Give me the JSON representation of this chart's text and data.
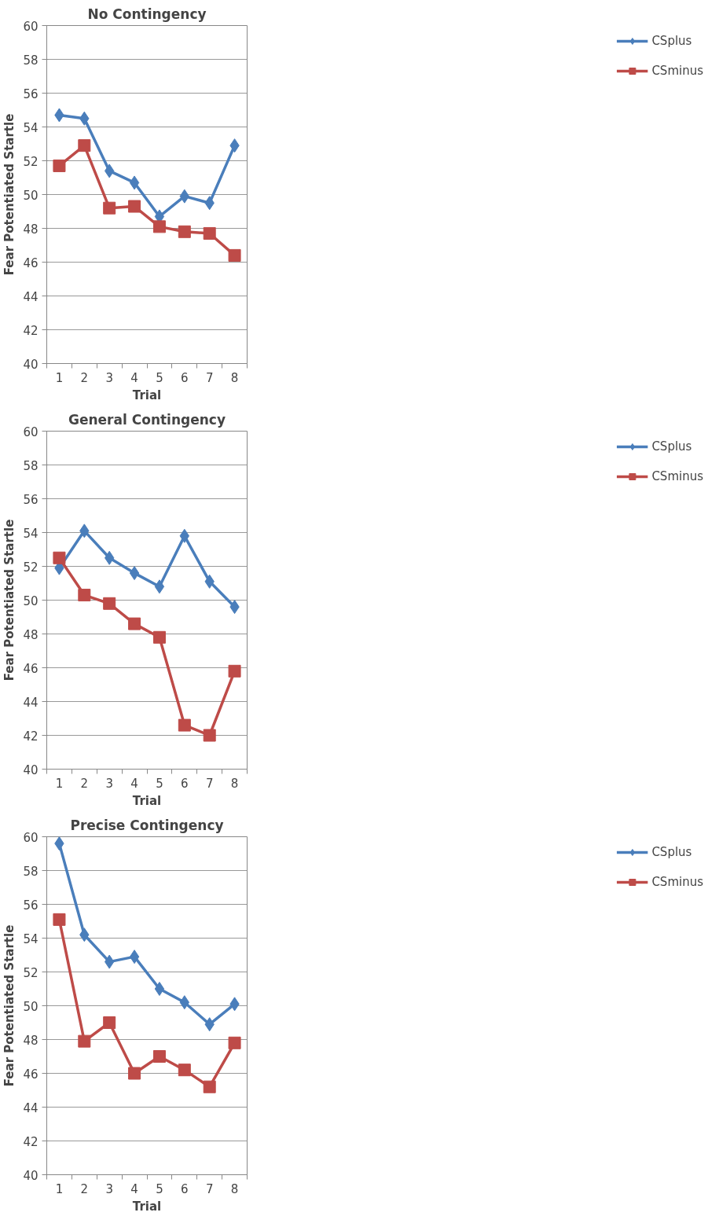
{
  "chart_data": [
    {
      "type": "line",
      "title": "No Contingency",
      "xlabel": "Trial",
      "ylabel": "Fear Potentiated Startle",
      "categories": [
        "1",
        "2",
        "3",
        "4",
        "5",
        "6",
        "7",
        "8"
      ],
      "ylim": [
        40,
        60
      ],
      "yticks": [
        40,
        42,
        44,
        46,
        48,
        50,
        52,
        54,
        56,
        58,
        60
      ],
      "grid": "y",
      "legend": "right",
      "series": [
        {
          "name": "CSplus",
          "color": "#4a7ebb",
          "marker": "diamond",
          "values": [
            54.7,
            54.5,
            51.4,
            50.7,
            48.7,
            49.9,
            49.5,
            52.9
          ]
        },
        {
          "name": "CSminus",
          "color": "#be4b48",
          "marker": "square",
          "values": [
            51.7,
            52.9,
            49.2,
            49.3,
            48.1,
            47.8,
            47.7,
            46.4
          ]
        }
      ]
    },
    {
      "type": "line",
      "title": "General Contingency",
      "xlabel": "Trial",
      "ylabel": "Fear Potentiated Startle",
      "categories": [
        "1",
        "2",
        "3",
        "4",
        "5",
        "6",
        "7",
        "8"
      ],
      "ylim": [
        40,
        60
      ],
      "yticks": [
        40,
        42,
        44,
        46,
        48,
        50,
        52,
        54,
        56,
        58,
        60
      ],
      "grid": "y",
      "legend": "right",
      "series": [
        {
          "name": "CSplus",
          "color": "#4a7ebb",
          "marker": "diamond",
          "values": [
            51.9,
            54.1,
            52.5,
            51.6,
            50.8,
            53.8,
            51.1,
            49.6
          ]
        },
        {
          "name": "CSminus",
          "color": "#be4b48",
          "marker": "square",
          "values": [
            52.5,
            50.3,
            49.8,
            48.6,
            47.8,
            42.6,
            42.0,
            45.8
          ]
        }
      ]
    },
    {
      "type": "line",
      "title": "Precise Contingency",
      "xlabel": "Trial",
      "ylabel": "Fear Potentiated Startle",
      "categories": [
        "1",
        "2",
        "3",
        "4",
        "5",
        "6",
        "7",
        "8"
      ],
      "ylim": [
        40,
        60
      ],
      "yticks": [
        40,
        42,
        44,
        46,
        48,
        50,
        52,
        54,
        56,
        58,
        60
      ],
      "grid": "y",
      "legend": "right",
      "series": [
        {
          "name": "CSplus",
          "color": "#4a7ebb",
          "marker": "diamond",
          "values": [
            59.6,
            54.2,
            52.6,
            52.9,
            51.0,
            50.2,
            48.9,
            50.1
          ]
        },
        {
          "name": "CSminus",
          "color": "#be4b48",
          "marker": "square",
          "values": [
            55.1,
            47.9,
            49.0,
            46.0,
            47.0,
            46.2,
            45.2,
            47.8
          ]
        }
      ]
    }
  ]
}
